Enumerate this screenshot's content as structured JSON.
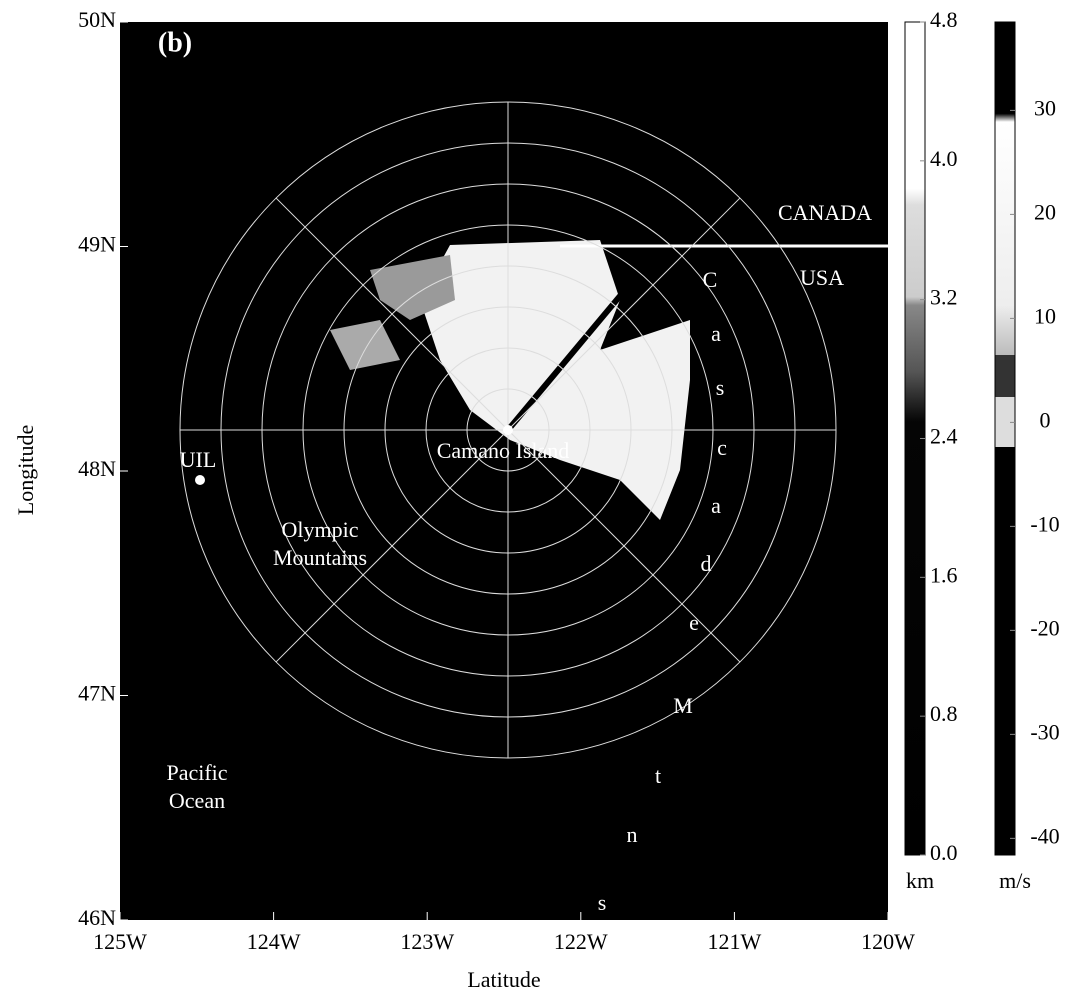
{
  "chart_data": {
    "type": "map",
    "xlabel": "Latitude",
    "ylabel": "Longitude",
    "xlim": [
      -125,
      -120
    ],
    "xticks": [
      {
        "value": -125,
        "label": "125W"
      },
      {
        "value": -124,
        "label": "124W"
      },
      {
        "value": -123,
        "label": "123W"
      },
      {
        "value": -122,
        "label": "122W"
      },
      {
        "value": -121,
        "label": "121W"
      },
      {
        "value": -120,
        "label": "120W"
      }
    ],
    "ylim": [
      46,
      50
    ],
    "yticks": [
      {
        "value": 46,
        "label": "46N"
      },
      {
        "value": 47,
        "label": "47N"
      },
      {
        "value": 48,
        "label": "48N"
      },
      {
        "value": 49,
        "label": "49N"
      },
      {
        "value": 50,
        "label": "50N"
      }
    ],
    "annotations": [
      "(b)",
      "CANADA",
      "USA",
      "Camano Island",
      "UIL",
      "Olympic",
      "Mountains",
      "Pacific",
      "Ocean",
      "C",
      "a",
      "s",
      "c",
      "a",
      "d",
      "e",
      "M",
      "t",
      "n",
      "s"
    ],
    "colorbars": [
      {
        "label": "km",
        "ylim": [
          0,
          4.8
        ],
        "yticks": [
          {
            "value": 0,
            "label": "0.0"
          },
          0.8,
          1.6,
          2.4,
          3.2,
          {
            "value": 4,
            "label": "4.0"
          },
          4.8
        ]
      },
      {
        "label": "m/s",
        "ylim": [
          -41.6,
          38.5
        ],
        "yticks": [
          -40,
          -30,
          -20,
          -10,
          0,
          10,
          20,
          30
        ]
      }
    ]
  }
}
